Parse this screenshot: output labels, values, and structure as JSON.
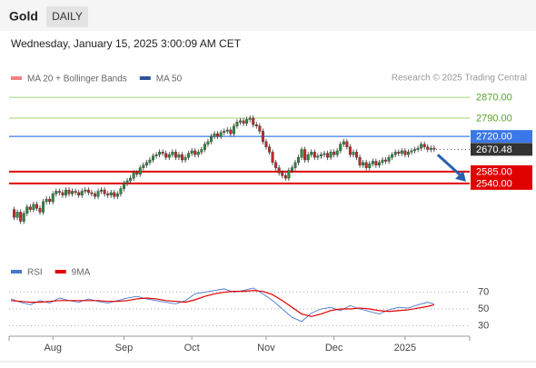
{
  "chart_data": {
    "type": "candlestick",
    "title": "Gold",
    "timeframe": "DAILY",
    "subtitle": "Wednesday, January 15, 2025 3:00:09 AM CET",
    "source": "Research © 2025 Trading Central",
    "legend": [
      {
        "name": "MA 20 + Bollinger Bands",
        "color": "#f08080"
      },
      {
        "name": "MA 50",
        "color": "#2f5597"
      }
    ],
    "up_color": "#2e8b3a",
    "down_color": "#c62828",
    "xlim": [
      0,
      142
    ],
    "xticks": [
      {
        "value": 13,
        "label": "Aug"
      },
      {
        "value": 35,
        "label": "Sep"
      },
      {
        "value": 56,
        "label": "Oct"
      },
      {
        "value": 79,
        "label": "Nov"
      },
      {
        "value": 100,
        "label": "Dec"
      },
      {
        "value": 122,
        "label": "2025"
      }
    ],
    "ylim": [
      2268,
      2912
    ],
    "values": [
      2440,
      2410,
      2430,
      2395,
      2425,
      2450,
      2440,
      2460,
      2445,
      2430,
      2470,
      2480,
      2470,
      2500,
      2510,
      2505,
      2495,
      2515,
      2500,
      2510,
      2505,
      2495,
      2510,
      2515,
      2505,
      2500,
      2490,
      2510,
      2515,
      2500,
      2495,
      2505,
      2490,
      2500,
      2520,
      2540,
      2550,
      2560,
      2580,
      2575,
      2600,
      2610,
      2620,
      2630,
      2645,
      2650,
      2660,
      2655,
      2640,
      2650,
      2660,
      2640,
      2650,
      2630,
      2640,
      2655,
      2665,
      2650,
      2660,
      2670,
      2690,
      2700,
      2720,
      2730,
      2720,
      2735,
      2740,
      2745,
      2730,
      2760,
      2775,
      2780,
      2770,
      2785,
      2790,
      2765,
      2760,
      2740,
      2700,
      2680,
      2660,
      2620,
      2600,
      2580,
      2570,
      2560,
      2590,
      2600,
      2620,
      2640,
      2670,
      2630,
      2650,
      2660,
      2640,
      2645,
      2650,
      2655,
      2640,
      2660,
      2650,
      2665,
      2690,
      2700,
      2680,
      2650,
      2660,
      2640,
      2610,
      2620,
      2600,
      2615,
      2625,
      2610,
      2620,
      2630,
      2625,
      2640,
      2650,
      2660,
      2655,
      2665,
      2650,
      2660,
      2665,
      2670,
      2675,
      2690,
      2680,
      2670,
      2675,
      2670.48
    ],
    "levels": [
      {
        "value": 2870,
        "label": "2870.00",
        "color": "#7cb342",
        "style": "text"
      },
      {
        "value": 2790,
        "label": "2790.00",
        "color": "#7cb342",
        "style": "text"
      },
      {
        "value": 2720,
        "label": "2720.00",
        "color": "#3b78e7",
        "style": "box"
      },
      {
        "value": 2670.48,
        "label": "2670.48",
        "color": "#333333",
        "style": "box"
      },
      {
        "value": 2585,
        "label": "2585.00",
        "color": "#e00000",
        "style": "box"
      },
      {
        "value": 2540,
        "label": "2540.00",
        "color": "#e00000",
        "style": "box"
      }
    ],
    "indicator": {
      "ylim": [
        12,
        88
      ],
      "yticks": [
        70,
        50,
        30
      ],
      "x": [
        0,
        3,
        6,
        9,
        12,
        15,
        18,
        21,
        24,
        27,
        30,
        33,
        36,
        39,
        42,
        45,
        48,
        51,
        54,
        57,
        60,
        63,
        66,
        69,
        72,
        75,
        78,
        81,
        84,
        87,
        90,
        93,
        96,
        99,
        102,
        105,
        108,
        111,
        114,
        117,
        120,
        123,
        126,
        129,
        131
      ],
      "series": [
        {
          "name": "RSI",
          "color": "#4a78d0",
          "values": [
            62,
            58,
            55,
            60,
            57,
            63,
            60,
            58,
            62,
            59,
            57,
            60,
            63,
            65,
            62,
            60,
            58,
            56,
            60,
            68,
            70,
            72,
            74,
            70,
            72,
            75,
            68,
            60,
            50,
            40,
            35,
            45,
            50,
            52,
            48,
            54,
            50,
            47,
            44,
            49,
            52,
            51,
            55,
            58,
            56
          ]
        },
        {
          "name": "9MA",
          "color": "#e00000",
          "values": [
            60,
            59,
            58,
            58,
            59,
            60,
            60,
            60,
            60,
            60,
            59,
            59,
            60,
            62,
            63,
            62,
            60,
            59,
            58,
            61,
            65,
            68,
            70,
            71,
            71,
            72,
            71,
            67,
            60,
            52,
            44,
            41,
            44,
            48,
            50,
            50,
            51,
            50,
            48,
            47,
            48,
            49,
            51,
            53,
            55
          ]
        }
      ]
    }
  }
}
